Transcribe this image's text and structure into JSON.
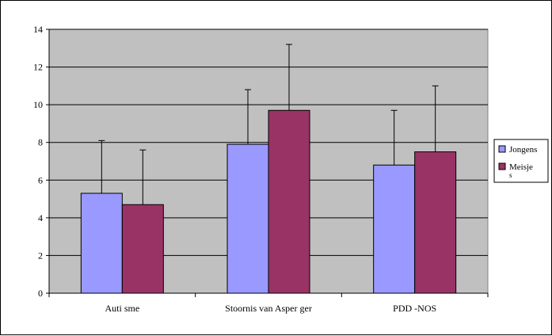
{
  "chart_data": {
    "type": "bar",
    "categories": [
      "Auti sme",
      "Stoornis  van Asper ger",
      "PDD -NOS"
    ],
    "series": [
      {
        "name": "Jongens",
        "values": [
          5.3,
          7.9,
          6.8
        ],
        "error_upper": [
          8.1,
          10.8,
          9.7
        ],
        "color": "#9999ff"
      },
      {
        "name": "Meisje s",
        "values": [
          4.7,
          9.7,
          7.5
        ],
        "error_upper": [
          7.6,
          13.2,
          11.0
        ],
        "color": "#993366"
      }
    ],
    "ylim": [
      0,
      14
    ],
    "yticks": [
      "0",
      "2",
      "4",
      "6",
      "8",
      "10",
      "12",
      "14"
    ],
    "grid": true,
    "plot_background": "#c0c0c0",
    "legend_position": "right",
    "title": "",
    "xlabel": "",
    "ylabel": ""
  }
}
